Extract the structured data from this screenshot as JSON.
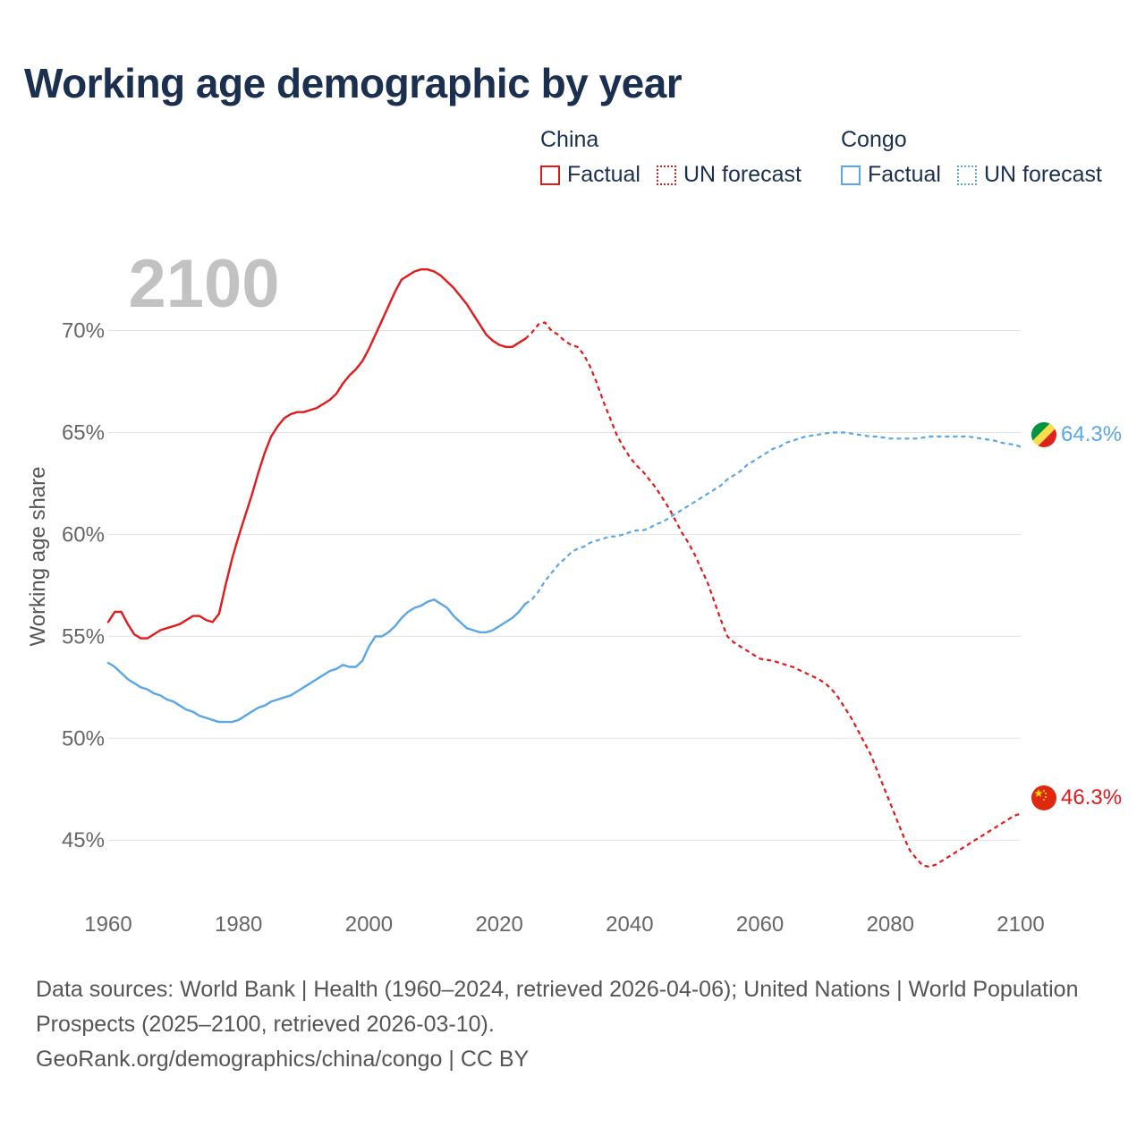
{
  "title": "Working age demographic by year",
  "legend": {
    "groups": [
      {
        "name": "China",
        "color": "#e31a1c",
        "factual_label": "Factual",
        "forecast_label": "UN forecast"
      },
      {
        "name": "Congo",
        "color": "#5aa6e6",
        "factual_label": "Factual",
        "forecast_label": "UN forecast"
      }
    ]
  },
  "footer": {
    "sources": "Data sources: World Bank | Health (1960–2024, retrieved 2026-04-06); United Nations | World Population Prospects (2025–2100, retrieved 2026-03-10).",
    "link": "GeoRank.org/demographics/china/congo | CC BY"
  },
  "chart_data": {
    "type": "line",
    "title": "Working age demographic by year",
    "year_watermark": "2100",
    "ylabel": "Working age share",
    "xlabel": "",
    "xlim": [
      1960,
      2100
    ],
    "ylim": [
      41.5,
      74.5
    ],
    "x_ticks": [
      1960,
      1980,
      2000,
      2020,
      2040,
      2060,
      2080,
      2100
    ],
    "y_ticks": [
      45,
      50,
      55,
      60,
      65,
      70
    ],
    "y_tick_labels": [
      "45%",
      "50%",
      "55%",
      "60%",
      "65%",
      "70%"
    ],
    "grid": true,
    "series": [
      {
        "name": "China",
        "color": "#e31a1c",
        "end_label": "46.3%",
        "factual": [
          [
            1960,
            55.7
          ],
          [
            1961,
            56.2
          ],
          [
            1962,
            56.2
          ],
          [
            1963,
            55.6
          ],
          [
            1964,
            55.1
          ],
          [
            1965,
            54.9
          ],
          [
            1966,
            54.9
          ],
          [
            1967,
            55.1
          ],
          [
            1968,
            55.3
          ],
          [
            1969,
            55.4
          ],
          [
            1970,
            55.5
          ],
          [
            1971,
            55.6
          ],
          [
            1972,
            55.8
          ],
          [
            1973,
            56.0
          ],
          [
            1974,
            56.0
          ],
          [
            1975,
            55.8
          ],
          [
            1976,
            55.7
          ],
          [
            1977,
            56.1
          ],
          [
            1978,
            57.5
          ],
          [
            1979,
            58.8
          ],
          [
            1980,
            59.9
          ],
          [
            1981,
            60.9
          ],
          [
            1982,
            61.9
          ],
          [
            1983,
            63.0
          ],
          [
            1984,
            64.0
          ],
          [
            1985,
            64.8
          ],
          [
            1986,
            65.3
          ],
          [
            1987,
            65.7
          ],
          [
            1988,
            65.9
          ],
          [
            1989,
            66.0
          ],
          [
            1990,
            66.0
          ],
          [
            1991,
            66.1
          ],
          [
            1992,
            66.2
          ],
          [
            1993,
            66.4
          ],
          [
            1994,
            66.6
          ],
          [
            1995,
            66.9
          ],
          [
            1996,
            67.4
          ],
          [
            1997,
            67.8
          ],
          [
            1998,
            68.1
          ],
          [
            1999,
            68.5
          ],
          [
            2000,
            69.1
          ],
          [
            2001,
            69.8
          ],
          [
            2002,
            70.5
          ],
          [
            2003,
            71.2
          ],
          [
            2004,
            71.9
          ],
          [
            2005,
            72.5
          ],
          [
            2006,
            72.7
          ],
          [
            2007,
            72.9
          ],
          [
            2008,
            73.0
          ],
          [
            2009,
            73.0
          ],
          [
            2010,
            72.9
          ],
          [
            2011,
            72.7
          ],
          [
            2012,
            72.4
          ],
          [
            2013,
            72.1
          ],
          [
            2014,
            71.7
          ],
          [
            2015,
            71.3
          ],
          [
            2016,
            70.8
          ],
          [
            2017,
            70.3
          ],
          [
            2018,
            69.8
          ],
          [
            2019,
            69.5
          ],
          [
            2020,
            69.3
          ],
          [
            2021,
            69.2
          ],
          [
            2022,
            69.2
          ],
          [
            2023,
            69.4
          ],
          [
            2024,
            69.6
          ]
        ],
        "forecast": [
          [
            2024,
            69.6
          ],
          [
            2025,
            69.9
          ],
          [
            2026,
            70.3
          ],
          [
            2027,
            70.4
          ],
          [
            2028,
            70.0
          ],
          [
            2029,
            69.8
          ],
          [
            2030,
            69.5
          ],
          [
            2031,
            69.3
          ],
          [
            2032,
            69.2
          ],
          [
            2033,
            68.8
          ],
          [
            2034,
            68.2
          ],
          [
            2035,
            67.4
          ],
          [
            2036,
            66.5
          ],
          [
            2037,
            65.7
          ],
          [
            2038,
            64.9
          ],
          [
            2039,
            64.3
          ],
          [
            2040,
            63.8
          ],
          [
            2041,
            63.4
          ],
          [
            2042,
            63.1
          ],
          [
            2043,
            62.7
          ],
          [
            2044,
            62.3
          ],
          [
            2045,
            61.8
          ],
          [
            2046,
            61.3
          ],
          [
            2047,
            60.7
          ],
          [
            2048,
            60.1
          ],
          [
            2049,
            59.6
          ],
          [
            2050,
            59.0
          ],
          [
            2051,
            58.3
          ],
          [
            2052,
            57.6
          ],
          [
            2053,
            56.7
          ],
          [
            2054,
            55.8
          ],
          [
            2055,
            55.0
          ],
          [
            2056,
            54.7
          ],
          [
            2057,
            54.5
          ],
          [
            2058,
            54.3
          ],
          [
            2059,
            54.1
          ],
          [
            2060,
            53.9
          ],
          [
            2061,
            53.85
          ],
          [
            2062,
            53.8
          ],
          [
            2063,
            53.7
          ],
          [
            2064,
            53.6
          ],
          [
            2065,
            53.5
          ],
          [
            2066,
            53.35
          ],
          [
            2067,
            53.2
          ],
          [
            2068,
            53.05
          ],
          [
            2069,
            52.9
          ],
          [
            2070,
            52.7
          ],
          [
            2071,
            52.4
          ],
          [
            2072,
            52.0
          ],
          [
            2073,
            51.5
          ],
          [
            2074,
            51.0
          ],
          [
            2075,
            50.4
          ],
          [
            2076,
            49.8
          ],
          [
            2077,
            49.2
          ],
          [
            2078,
            48.4
          ],
          [
            2079,
            47.6
          ],
          [
            2080,
            46.8
          ],
          [
            2081,
            46.0
          ],
          [
            2082,
            45.2
          ],
          [
            2083,
            44.5
          ],
          [
            2084,
            44.1
          ],
          [
            2085,
            43.75
          ],
          [
            2086,
            43.7
          ],
          [
            2087,
            43.8
          ],
          [
            2088,
            44.0
          ],
          [
            2089,
            44.2
          ],
          [
            2090,
            44.4
          ],
          [
            2091,
            44.6
          ],
          [
            2092,
            44.8
          ],
          [
            2093,
            45.0
          ],
          [
            2094,
            45.2
          ],
          [
            2095,
            45.4
          ],
          [
            2096,
            45.6
          ],
          [
            2097,
            45.8
          ],
          [
            2098,
            46.0
          ],
          [
            2099,
            46.2
          ],
          [
            2100,
            46.3
          ]
        ]
      },
      {
        "name": "Congo",
        "color": "#5aa6e6",
        "end_label": "64.3%",
        "factual": [
          [
            1960,
            53.7
          ],
          [
            1961,
            53.5
          ],
          [
            1962,
            53.2
          ],
          [
            1963,
            52.9
          ],
          [
            1964,
            52.7
          ],
          [
            1965,
            52.5
          ],
          [
            1966,
            52.4
          ],
          [
            1967,
            52.2
          ],
          [
            1968,
            52.1
          ],
          [
            1969,
            51.9
          ],
          [
            1970,
            51.8
          ],
          [
            1971,
            51.6
          ],
          [
            1972,
            51.4
          ],
          [
            1973,
            51.3
          ],
          [
            1974,
            51.1
          ],
          [
            1975,
            51.0
          ],
          [
            1976,
            50.9
          ],
          [
            1977,
            50.8
          ],
          [
            1978,
            50.8
          ],
          [
            1979,
            50.8
          ],
          [
            1980,
            50.9
          ],
          [
            1981,
            51.1
          ],
          [
            1982,
            51.3
          ],
          [
            1983,
            51.5
          ],
          [
            1984,
            51.6
          ],
          [
            1985,
            51.8
          ],
          [
            1986,
            51.9
          ],
          [
            1987,
            52.0
          ],
          [
            1988,
            52.1
          ],
          [
            1989,
            52.3
          ],
          [
            1990,
            52.5
          ],
          [
            1991,
            52.7
          ],
          [
            1992,
            52.9
          ],
          [
            1993,
            53.1
          ],
          [
            1994,
            53.3
          ],
          [
            1995,
            53.4
          ],
          [
            1996,
            53.6
          ],
          [
            1997,
            53.5
          ],
          [
            1998,
            53.5
          ],
          [
            1999,
            53.8
          ],
          [
            2000,
            54.5
          ],
          [
            2001,
            55.0
          ],
          [
            2002,
            55.0
          ],
          [
            2003,
            55.2
          ],
          [
            2004,
            55.5
          ],
          [
            2005,
            55.9
          ],
          [
            2006,
            56.2
          ],
          [
            2007,
            56.4
          ],
          [
            2008,
            56.5
          ],
          [
            2009,
            56.7
          ],
          [
            2010,
            56.8
          ],
          [
            2011,
            56.6
          ],
          [
            2012,
            56.4
          ],
          [
            2013,
            56.0
          ],
          [
            2014,
            55.7
          ],
          [
            2015,
            55.4
          ],
          [
            2016,
            55.3
          ],
          [
            2017,
            55.2
          ],
          [
            2018,
            55.2
          ],
          [
            2019,
            55.3
          ],
          [
            2020,
            55.5
          ],
          [
            2021,
            55.7
          ],
          [
            2022,
            55.9
          ],
          [
            2023,
            56.2
          ],
          [
            2024,
            56.6
          ]
        ],
        "forecast": [
          [
            2024,
            56.6
          ],
          [
            2025,
            56.8
          ],
          [
            2026,
            57.2
          ],
          [
            2027,
            57.7
          ],
          [
            2028,
            58.1
          ],
          [
            2029,
            58.5
          ],
          [
            2030,
            58.8
          ],
          [
            2031,
            59.1
          ],
          [
            2032,
            59.3
          ],
          [
            2033,
            59.4
          ],
          [
            2034,
            59.6
          ],
          [
            2035,
            59.7
          ],
          [
            2036,
            59.8
          ],
          [
            2037,
            59.9
          ],
          [
            2038,
            59.9
          ],
          [
            2039,
            60.0
          ],
          [
            2040,
            60.1
          ],
          [
            2041,
            60.2
          ],
          [
            2042,
            60.2
          ],
          [
            2043,
            60.3
          ],
          [
            2044,
            60.5
          ],
          [
            2045,
            60.6
          ],
          [
            2046,
            60.8
          ],
          [
            2047,
            61.0
          ],
          [
            2048,
            61.2
          ],
          [
            2049,
            61.4
          ],
          [
            2050,
            61.6
          ],
          [
            2051,
            61.8
          ],
          [
            2052,
            62.0
          ],
          [
            2053,
            62.2
          ],
          [
            2054,
            62.4
          ],
          [
            2055,
            62.7
          ],
          [
            2056,
            62.9
          ],
          [
            2057,
            63.1
          ],
          [
            2058,
            63.4
          ],
          [
            2059,
            63.6
          ],
          [
            2060,
            63.8
          ],
          [
            2061,
            64.0
          ],
          [
            2062,
            64.2
          ],
          [
            2063,
            64.3
          ],
          [
            2064,
            64.5
          ],
          [
            2065,
            64.6
          ],
          [
            2066,
            64.7
          ],
          [
            2067,
            64.8
          ],
          [
            2068,
            64.85
          ],
          [
            2069,
            64.9
          ],
          [
            2070,
            64.95
          ],
          [
            2071,
            65.0
          ],
          [
            2072,
            65.0
          ],
          [
            2073,
            65.0
          ],
          [
            2074,
            64.95
          ],
          [
            2075,
            64.9
          ],
          [
            2076,
            64.85
          ],
          [
            2077,
            64.8
          ],
          [
            2078,
            64.8
          ],
          [
            2079,
            64.75
          ],
          [
            2080,
            64.7
          ],
          [
            2081,
            64.7
          ],
          [
            2082,
            64.7
          ],
          [
            2083,
            64.7
          ],
          [
            2084,
            64.7
          ],
          [
            2085,
            64.75
          ],
          [
            2086,
            64.8
          ],
          [
            2087,
            64.8
          ],
          [
            2088,
            64.8
          ],
          [
            2089,
            64.8
          ],
          [
            2090,
            64.8
          ],
          [
            2091,
            64.8
          ],
          [
            2092,
            64.8
          ],
          [
            2093,
            64.75
          ],
          [
            2094,
            64.7
          ],
          [
            2095,
            64.65
          ],
          [
            2096,
            64.6
          ],
          [
            2097,
            64.5
          ],
          [
            2098,
            64.45
          ],
          [
            2099,
            64.4
          ],
          [
            2100,
            64.3
          ]
        ]
      }
    ]
  }
}
